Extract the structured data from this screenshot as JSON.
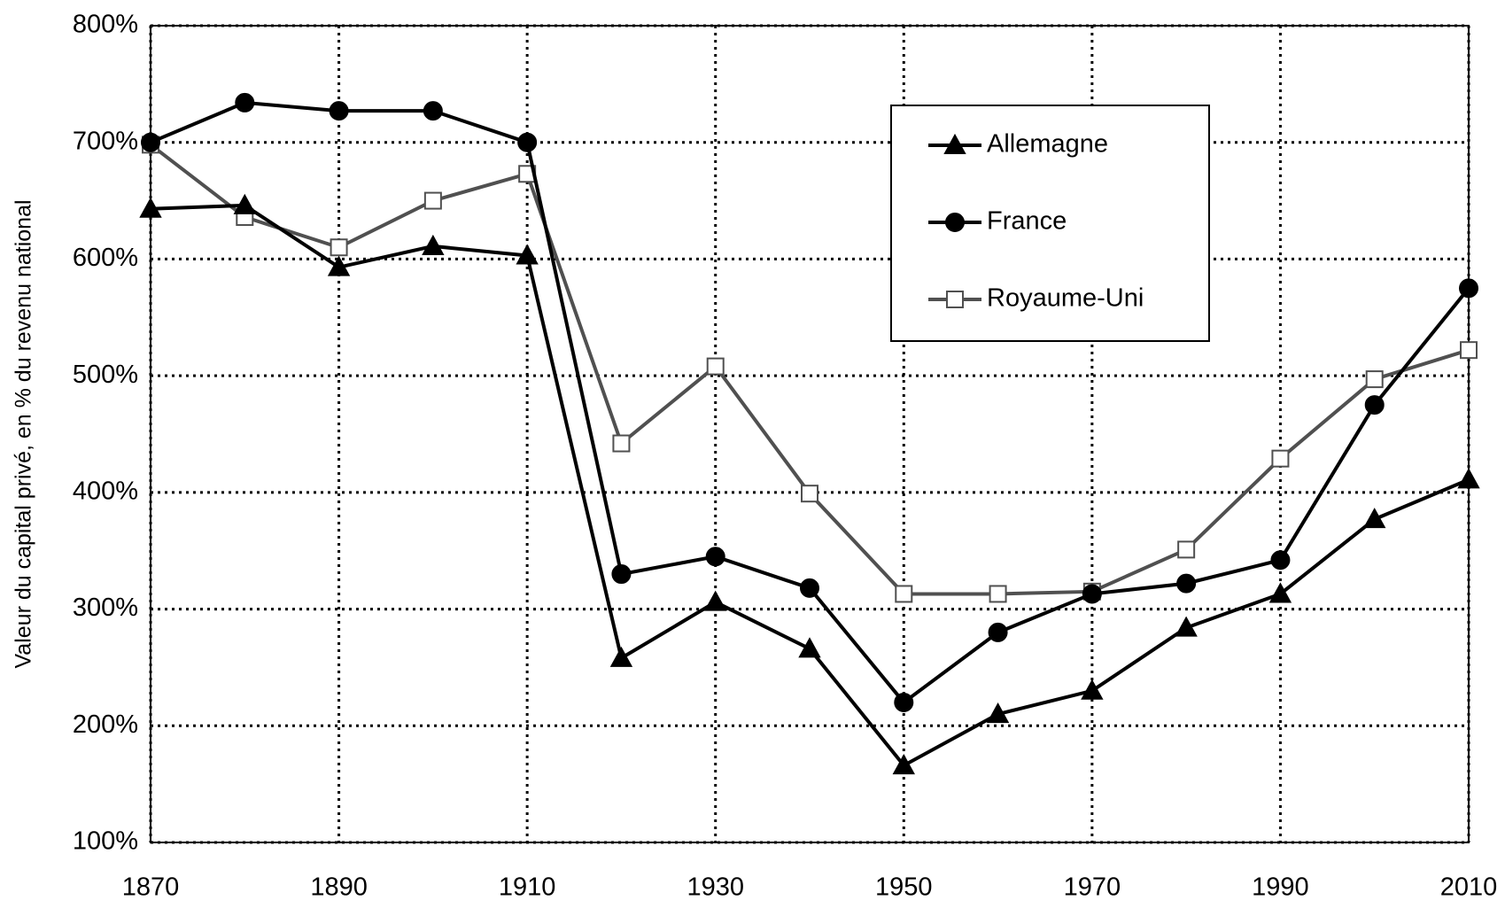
{
  "chart_data": {
    "type": "line",
    "y_label": "Valeur du capital privé, en % du revenu national",
    "x": [
      1870,
      1880,
      1890,
      1900,
      1910,
      1920,
      1930,
      1940,
      1950,
      1960,
      1970,
      1980,
      1990,
      2000,
      2010
    ],
    "xlim": [
      1870,
      2010
    ],
    "xticks": [
      1870,
      1890,
      1910,
      1930,
      1950,
      1970,
      1990,
      2010
    ],
    "ylim": [
      100,
      800
    ],
    "yticks": [
      {
        "value": 100,
        "label": "100%"
      },
      {
        "value": 200,
        "label": "200%"
      },
      {
        "value": 300,
        "label": "300%"
      },
      {
        "value": 400,
        "label": "400%"
      },
      {
        "value": 500,
        "label": "500%"
      },
      {
        "value": 600,
        "label": "600%"
      },
      {
        "value": 700,
        "label": "700%"
      },
      {
        "value": 800,
        "label": "800%"
      }
    ],
    "grid": true,
    "legend": "top-right",
    "series": [
      {
        "name": "Allemagne",
        "color": "#000000",
        "marker": "triangle",
        "values": [
          643,
          646,
          593,
          611,
          603,
          258,
          306,
          266,
          166,
          210,
          230,
          284,
          313,
          377,
          411
        ]
      },
      {
        "name": "France",
        "color": "#000000",
        "marker": "circle",
        "values": [
          700,
          734,
          727,
          727,
          700,
          330,
          345,
          318,
          220,
          280,
          313,
          322,
          342,
          475,
          575
        ]
      },
      {
        "name": "Royaume-Uni",
        "color": "#505050",
        "marker": "square",
        "values": [
          698,
          636,
          610,
          650,
          673,
          442,
          508,
          399,
          313,
          313,
          315,
          351,
          429,
          497,
          522
        ]
      }
    ]
  }
}
